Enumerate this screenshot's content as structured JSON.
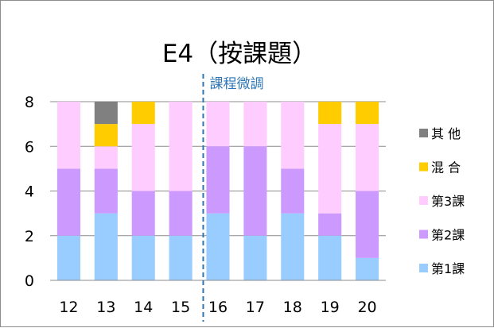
{
  "chart_data": {
    "type": "bar",
    "stacked": true,
    "title": "E4（按課題）",
    "categories": [
      "12",
      "13",
      "14",
      "15",
      "16",
      "17",
      "18",
      "19",
      "20"
    ],
    "series": [
      {
        "name": "第1課",
        "color": "#99ccff",
        "values": [
          2,
          3,
          2,
          2,
          3,
          2,
          3,
          2,
          1
        ]
      },
      {
        "name": "第2課",
        "color": "#cc99ff",
        "values": [
          3,
          2,
          2,
          2,
          3,
          4,
          2,
          1,
          3
        ]
      },
      {
        "name": "第3課",
        "color": "#ffccff",
        "values": [
          3,
          1,
          3,
          4,
          2,
          2,
          3,
          4,
          3
        ]
      },
      {
        "name": "混 合",
        "color": "#ffcc00",
        "values": [
          0,
          1,
          1,
          0,
          0,
          0,
          0,
          1,
          1
        ]
      },
      {
        "name": "其 他",
        "color": "#808080",
        "values": [
          0,
          1,
          0,
          0,
          0,
          0,
          0,
          0,
          0
        ]
      }
    ],
    "ylim": [
      0,
      8
    ],
    "yticks": [
      0,
      2,
      4,
      6,
      8
    ],
    "grid": true,
    "legend_position": "right",
    "annotation": {
      "text": "課程微調",
      "at_category": "16",
      "color": "#2e75b6",
      "style": "dashed-vertical-line"
    }
  }
}
